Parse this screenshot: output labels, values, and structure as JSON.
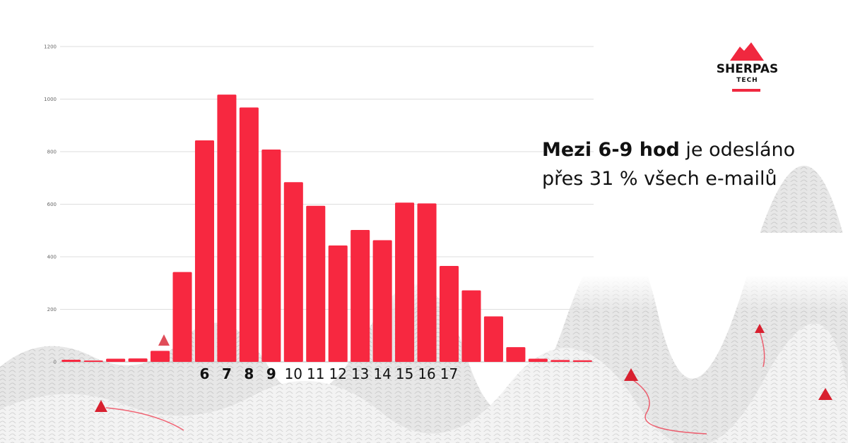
{
  "headline": {
    "bold": "Mezi 6-9 hod",
    "rest": " je odesláno přes 31 % všech e-mailů"
  },
  "logo": {
    "word": "SHERPAS",
    "sub": "TECH"
  },
  "colors": {
    "bar": "#f72840",
    "accent": "#f0283f",
    "grid": "#dddddd"
  },
  "chart_data": {
    "type": "bar",
    "title": "",
    "xlabel": "",
    "ylabel": "",
    "ylim": [
      0,
      1200
    ],
    "yticks": [
      0,
      200,
      400,
      600,
      800,
      1000,
      1200
    ],
    "grid": true,
    "values": [
      8,
      5,
      12,
      13,
      42,
      342,
      843,
      1017,
      968,
      808,
      684,
      594,
      443,
      502,
      463,
      606,
      603,
      365,
      272,
      173,
      56,
      12,
      7,
      6
    ],
    "x_labels": [
      {
        "index": 6,
        "text": "6",
        "bold": true
      },
      {
        "index": 7,
        "text": "7",
        "bold": true
      },
      {
        "index": 8,
        "text": "8",
        "bold": true
      },
      {
        "index": 9,
        "text": "9",
        "bold": true
      },
      {
        "index": 10,
        "text": "10",
        "bold": false
      },
      {
        "index": 11,
        "text": "11",
        "bold": false
      },
      {
        "index": 12,
        "text": "12",
        "bold": false
      },
      {
        "index": 13,
        "text": "13",
        "bold": false
      },
      {
        "index": 14,
        "text": "14",
        "bold": false
      },
      {
        "index": 15,
        "text": "15",
        "bold": false
      },
      {
        "index": 16,
        "text": "16",
        "bold": false
      },
      {
        "index": 17,
        "text": "17",
        "bold": false
      }
    ]
  }
}
